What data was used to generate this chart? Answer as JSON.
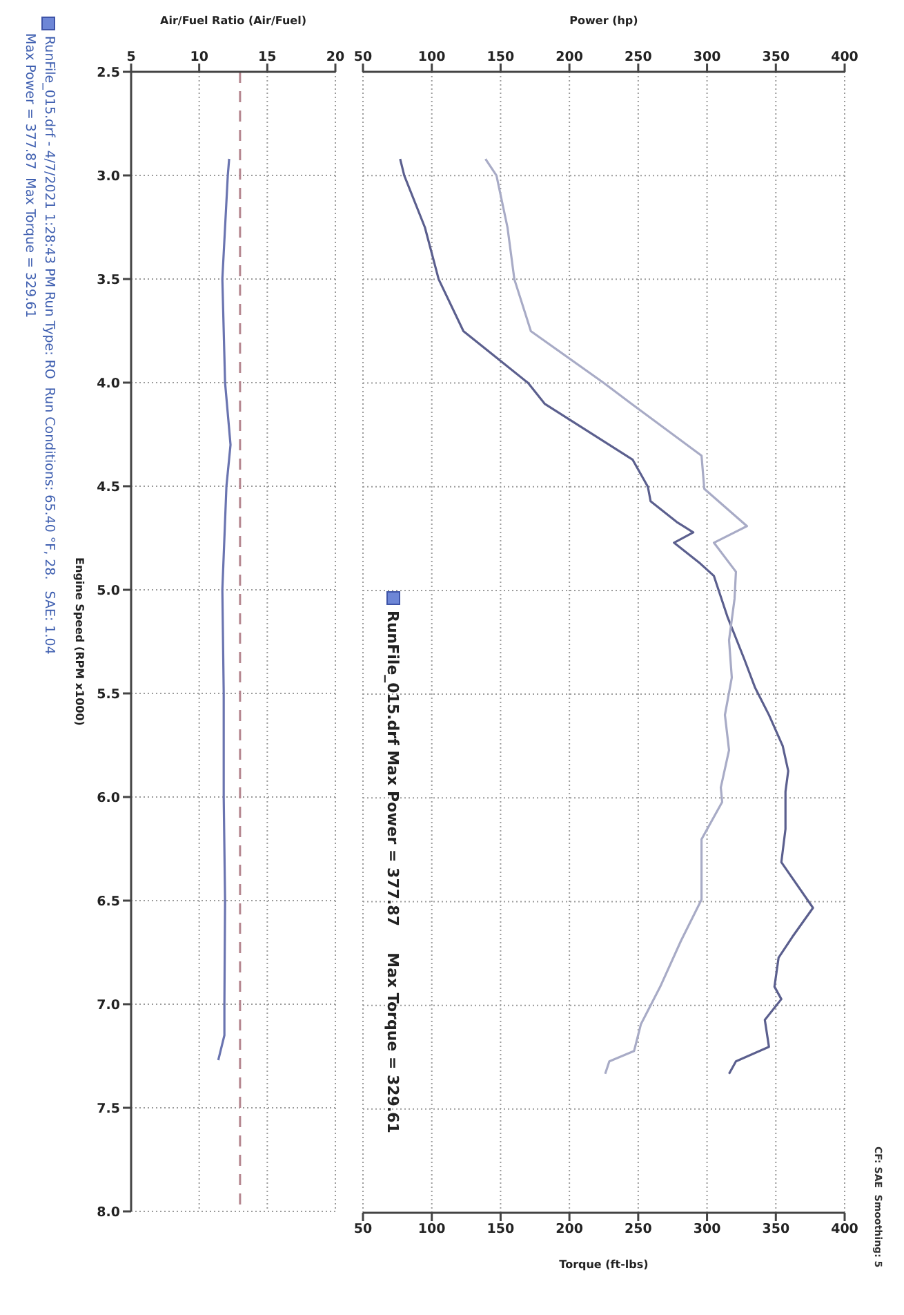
{
  "chart_data": [
    {
      "type": "line",
      "xlabel": "Air/Fuel Ratio (Air/Fuel)",
      "ylabel": "Engine Speed (RPM x1000)",
      "xlim": [
        5,
        20
      ],
      "xticks": [
        5,
        10,
        15,
        20
      ],
      "ylim": [
        8.0,
        2.5
      ],
      "yticks": [
        {
          "value": 2.5,
          "label": "2.5"
        },
        {
          "value": 3,
          "label": "3.0"
        },
        {
          "value": 3.5,
          "label": "3.5"
        },
        {
          "value": 4,
          "label": "4.0"
        },
        {
          "value": 4.5,
          "label": "4.5"
        },
        {
          "value": 5,
          "label": "5.0"
        },
        {
          "value": 5.5,
          "label": "5.5"
        },
        {
          "value": 6,
          "label": "6.0"
        },
        {
          "value": 6.5,
          "label": "6.5"
        },
        {
          "value": 7,
          "label": "7.0"
        },
        {
          "value": 7.5,
          "label": "7.5"
        },
        {
          "value": 8,
          "label": "8.0"
        }
      ],
      "grid": true,
      "marker": "none",
      "line_style": "solid",
      "ref_lines": [
        {
          "axis": "x",
          "value": 13,
          "color": "#b5868f",
          "line_style": "dashed"
        }
      ],
      "annotations": [
        "RunFile_015.drf - 4/7/2021 1:28:43 PM Run Type: RO  Run Conditions: 65.40 °F, 28.",
        "SAE: 1.04",
        "Max Power = 377.87  Max Torque = 329.61"
      ],
      "series": [
        {
          "color": "#6a74b0",
          "x": [
            12.2,
            12.1,
            11.7,
            11.9,
            12.3,
            12.0,
            11.7,
            11.8,
            11.8,
            11.9,
            11.85,
            11.85,
            11.4
          ],
          "values": [
            2.92,
            3.0,
            3.5,
            4.0,
            4.3,
            4.5,
            5.0,
            5.5,
            6.0,
            6.5,
            7.0,
            7.15,
            7.27
          ]
        }
      ]
    },
    {
      "type": "line",
      "x2label": "Power (hp)",
      "xlabel": "Torque (ft-lbs)",
      "x2lim": [
        50,
        400
      ],
      "x2ticks": [
        50,
        100,
        150,
        200,
        250,
        300,
        350,
        400
      ],
      "xlim": [
        50,
        400
      ],
      "xticks": [
        50,
        100,
        150,
        200,
        250,
        300,
        350,
        400
      ],
      "ylim": [
        8.0,
        2.5
      ],
      "yticks": [
        2.5,
        3,
        3.5,
        4,
        4.5,
        5,
        5.5,
        6,
        6.5,
        7,
        7.5,
        8
      ],
      "grid": true,
      "tick_labels": "x",
      "marker": "none",
      "line_style": "solid",
      "annotations": [
        "RunFile_015.drf Max Power = 377.87     Max Torque = 329.61",
        "CF: SAE  Smoothing: 5"
      ],
      "series": [
        {
          "axis": "x2",
          "color": "#5b5f8e",
          "x": [
            77,
            80,
            95,
            105,
            123,
            170,
            182,
            246,
            257,
            259,
            278,
            290,
            276,
            295,
            305,
            315,
            327,
            335,
            345,
            355,
            359,
            357,
            357,
            354,
            377,
            362,
            352,
            349,
            354,
            342,
            345,
            321,
            316
          ],
          "values": [
            2.92,
            3.0,
            3.25,
            3.5,
            3.75,
            4.0,
            4.1,
            4.37,
            4.5,
            4.57,
            4.67,
            4.72,
            4.77,
            4.87,
            4.93,
            5.13,
            5.33,
            5.47,
            5.6,
            5.75,
            5.87,
            5.97,
            6.15,
            6.31,
            6.53,
            6.67,
            6.77,
            6.91,
            6.97,
            7.07,
            7.2,
            7.27,
            7.33
          ]
        },
        {
          "color": "#a8abc6",
          "x": [
            139,
            147,
            155,
            160,
            172,
            225,
            245,
            296,
            298,
            329,
            305,
            321,
            320,
            316,
            318,
            313,
            316,
            310,
            311,
            296,
            296,
            296,
            281,
            266,
            252,
            247,
            229,
            226
          ],
          "values": [
            2.92,
            3.0,
            3.25,
            3.5,
            3.75,
            4.0,
            4.1,
            4.35,
            4.51,
            4.69,
            4.77,
            4.91,
            5.04,
            5.24,
            5.42,
            5.6,
            5.77,
            5.95,
            6.02,
            6.2,
            6.31,
            6.49,
            6.69,
            6.91,
            7.09,
            7.22,
            7.27,
            7.33
          ]
        }
      ]
    }
  ]
}
